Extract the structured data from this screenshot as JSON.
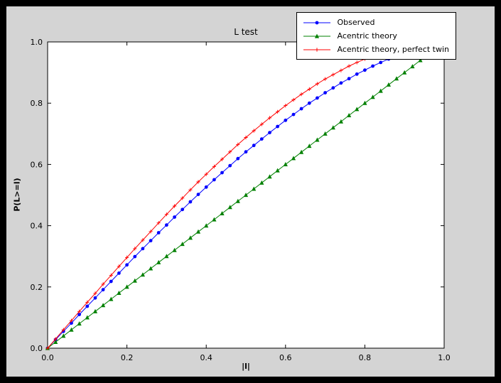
{
  "figure": {
    "title": "L test",
    "xlabel": "|l|",
    "ylabel": "P(L>=l)",
    "background_color": "#d4d4d4",
    "plot_background_color": "#ffffff",
    "frame_color": "#000000"
  },
  "axes": {
    "x_ticks": [
      "0.0",
      "0.2",
      "0.4",
      "0.6",
      "0.8",
      "1.0"
    ],
    "y_ticks": [
      "0.0",
      "0.2",
      "0.4",
      "0.6",
      "0.8",
      "1.0"
    ]
  },
  "legend": {
    "position": "top-right",
    "entries": [
      {
        "label": "Observed",
        "color": "#0000ff",
        "marker": "circle"
      },
      {
        "label": "Acentric theory",
        "color": "#008000",
        "marker": "triangle"
      },
      {
        "label": "Acentric theory, perfect twin",
        "color": "#ff0000",
        "marker": "plus"
      }
    ]
  },
  "chart_data": {
    "type": "line",
    "title": "L test",
    "xlabel": "|l|",
    "ylabel": "P(L>=l)",
    "xlim": [
      0,
      1
    ],
    "ylim": [
      0,
      1
    ],
    "grid": false,
    "legend_position": "upper right",
    "series": [
      {
        "name": "Observed",
        "color": "#0000ff",
        "marker": "circle",
        "x": [
          0,
          0.02,
          0.04,
          0.06,
          0.08,
          0.1,
          0.12,
          0.14,
          0.16,
          0.18,
          0.2,
          0.22,
          0.24,
          0.26,
          0.28,
          0.3,
          0.32,
          0.34,
          0.36,
          0.38,
          0.4,
          0.42,
          0.44,
          0.46,
          0.48,
          0.5,
          0.52,
          0.54,
          0.56,
          0.58,
          0.6,
          0.62,
          0.64,
          0.66,
          0.68,
          0.7,
          0.72,
          0.74,
          0.76,
          0.78,
          0.8,
          0.82,
          0.84,
          0.86
        ],
        "y": [
          0,
          0.028,
          0.055,
          0.082,
          0.11,
          0.137,
          0.164,
          0.191,
          0.218,
          0.245,
          0.272,
          0.299,
          0.325,
          0.351,
          0.377,
          0.402,
          0.428,
          0.453,
          0.478,
          0.502,
          0.526,
          0.55,
          0.573,
          0.596,
          0.619,
          0.641,
          0.662,
          0.683,
          0.704,
          0.724,
          0.744,
          0.763,
          0.782,
          0.8,
          0.817,
          0.834,
          0.85,
          0.866,
          0.88,
          0.895,
          0.908,
          0.921,
          0.933,
          0.944
        ]
      },
      {
        "name": "Acentric theory",
        "color": "#008000",
        "marker": "triangle",
        "x": [
          0,
          0.02,
          0.04,
          0.06,
          0.08,
          0.1,
          0.12,
          0.14,
          0.16,
          0.18,
          0.2,
          0.22,
          0.24,
          0.26,
          0.28,
          0.3,
          0.32,
          0.34,
          0.36,
          0.38,
          0.4,
          0.42,
          0.44,
          0.46,
          0.48,
          0.5,
          0.52,
          0.54,
          0.56,
          0.58,
          0.6,
          0.62,
          0.64,
          0.66,
          0.68,
          0.7,
          0.72,
          0.74,
          0.76,
          0.78,
          0.8,
          0.82,
          0.84,
          0.86,
          0.88,
          0.9,
          0.92,
          0.94,
          0.96
        ],
        "y": [
          0,
          0.02,
          0.04,
          0.06,
          0.08,
          0.1,
          0.12,
          0.14,
          0.16,
          0.18,
          0.2,
          0.22,
          0.24,
          0.26,
          0.28,
          0.3,
          0.32,
          0.34,
          0.36,
          0.38,
          0.4,
          0.42,
          0.44,
          0.46,
          0.48,
          0.5,
          0.52,
          0.54,
          0.56,
          0.58,
          0.6,
          0.62,
          0.64,
          0.66,
          0.68,
          0.7,
          0.72,
          0.74,
          0.76,
          0.78,
          0.8,
          0.82,
          0.84,
          0.86,
          0.88,
          0.9,
          0.92,
          0.94,
          0.96
        ]
      },
      {
        "name": "Acentric theory, perfect twin",
        "color": "#ff0000",
        "marker": "plus",
        "x": [
          0,
          0.02,
          0.04,
          0.06,
          0.08,
          0.1,
          0.12,
          0.14,
          0.16,
          0.18,
          0.2,
          0.22,
          0.24,
          0.26,
          0.28,
          0.3,
          0.32,
          0.34,
          0.36,
          0.38,
          0.4,
          0.42,
          0.44,
          0.46,
          0.48,
          0.5,
          0.52,
          0.54,
          0.56,
          0.58,
          0.6,
          0.62,
          0.64,
          0.66,
          0.68,
          0.7,
          0.72,
          0.74,
          0.76,
          0.78,
          0.8,
          0.82,
          0.84,
          0.86
        ],
        "y": [
          0,
          0.03,
          0.06,
          0.09,
          0.12,
          0.15,
          0.179,
          0.209,
          0.238,
          0.267,
          0.296,
          0.325,
          0.353,
          0.381,
          0.409,
          0.437,
          0.464,
          0.49,
          0.517,
          0.543,
          0.568,
          0.593,
          0.617,
          0.641,
          0.665,
          0.688,
          0.71,
          0.731,
          0.752,
          0.772,
          0.792,
          0.811,
          0.829,
          0.846,
          0.863,
          0.879,
          0.893,
          0.907,
          0.921,
          0.933,
          0.944,
          0.954,
          0.964,
          0.972
        ]
      }
    ]
  }
}
